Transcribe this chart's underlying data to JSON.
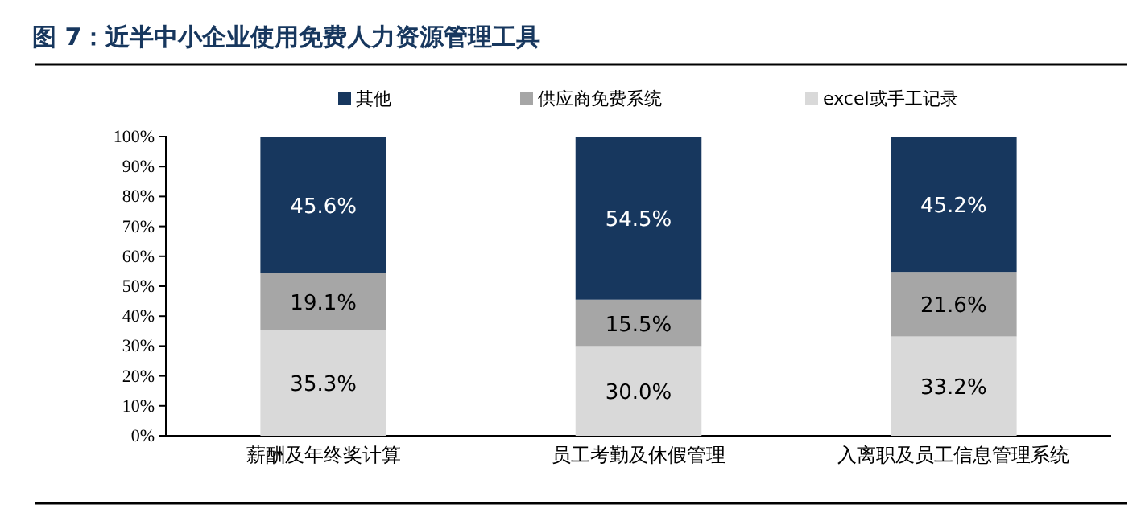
{
  "chart_data": {
    "type": "bar",
    "title": "图 7：近半中小企业使用免费人力资源管理工具",
    "stacked": true,
    "legend": "top",
    "categories": [
      "薪酬及年终奖计算",
      "员工考勤及休假管理",
      "入离职及员工信息管理系统"
    ],
    "series": [
      {
        "name": "excel或手工记录",
        "color": "#d9d9d9",
        "values": [
          35.3,
          30.0,
          33.2
        ],
        "value_labels": [
          "35.3%",
          "30.0%",
          "33.2%"
        ]
      },
      {
        "name": "供应商免费系统",
        "color": "#a6a6a6",
        "values": [
          19.1,
          15.5,
          21.6
        ],
        "value_labels": [
          "19.1%",
          "15.5%",
          "21.6%"
        ]
      },
      {
        "name": "其他",
        "color": "#17375e",
        "values": [
          45.6,
          54.5,
          45.2
        ],
        "value_labels": [
          "45.6%",
          "54.5%",
          "45.2%"
        ]
      }
    ],
    "ylim": [
      0,
      100
    ],
    "yticks": [
      {
        "value": 0,
        "label": "0%"
      },
      {
        "value": 10,
        "label": "10%"
      },
      {
        "value": 20,
        "label": "20%"
      },
      {
        "value": 30,
        "label": "30%"
      },
      {
        "value": 40,
        "label": "40%"
      },
      {
        "value": 50,
        "label": "50%"
      },
      {
        "value": 60,
        "label": "60%"
      },
      {
        "value": 70,
        "label": "70%"
      },
      {
        "value": 80,
        "label": "80%"
      },
      {
        "value": 90,
        "label": "90%"
      },
      {
        "value": 100,
        "label": "100%"
      }
    ]
  }
}
